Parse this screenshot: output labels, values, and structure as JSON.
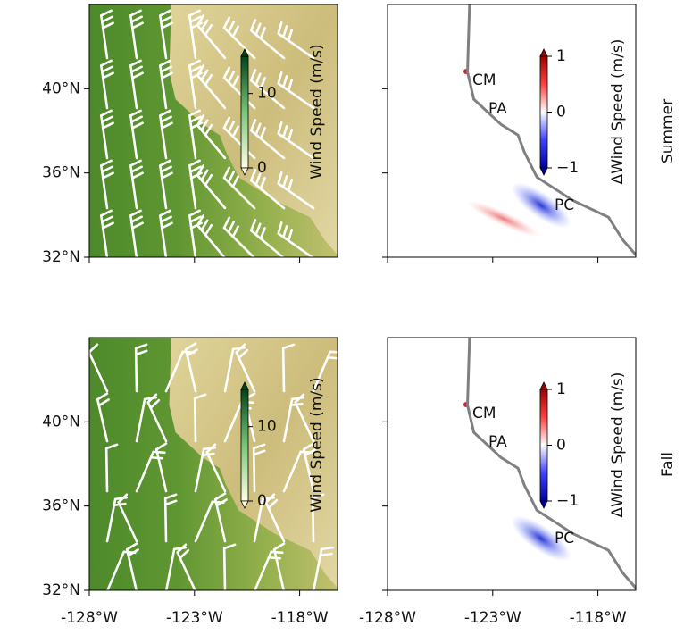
{
  "lon_lim": [
    -128,
    -116.2
  ],
  "lat_lim": [
    32,
    44
  ],
  "x_ticks": [
    {
      "value": -128,
      "label": "-128°W"
    },
    {
      "value": -123,
      "label": "-123°W"
    },
    {
      "value": -118,
      "label": "-118°W"
    }
  ],
  "y_ticks": [
    {
      "value": 32,
      "label": "32°N"
    },
    {
      "value": 36,
      "label": "36°N"
    },
    {
      "value": 40,
      "label": "40°N"
    }
  ],
  "colorbars": {
    "wind": {
      "label": "Wind Speed (m/s)",
      "lim": [
        0,
        15
      ],
      "ticks": [
        0,
        10
      ]
    },
    "delta": {
      "label": "ΔWind Speed (m/s)",
      "lim": [
        -1,
        1
      ],
      "ticks": [
        {
          "value": -1,
          "label": "−1"
        },
        0,
        1
      ]
    }
  },
  "places": [
    "CM",
    "PA",
    "PC"
  ],
  "rows": [
    {
      "label": "Summer"
    },
    {
      "label": "Fall"
    }
  ]
}
